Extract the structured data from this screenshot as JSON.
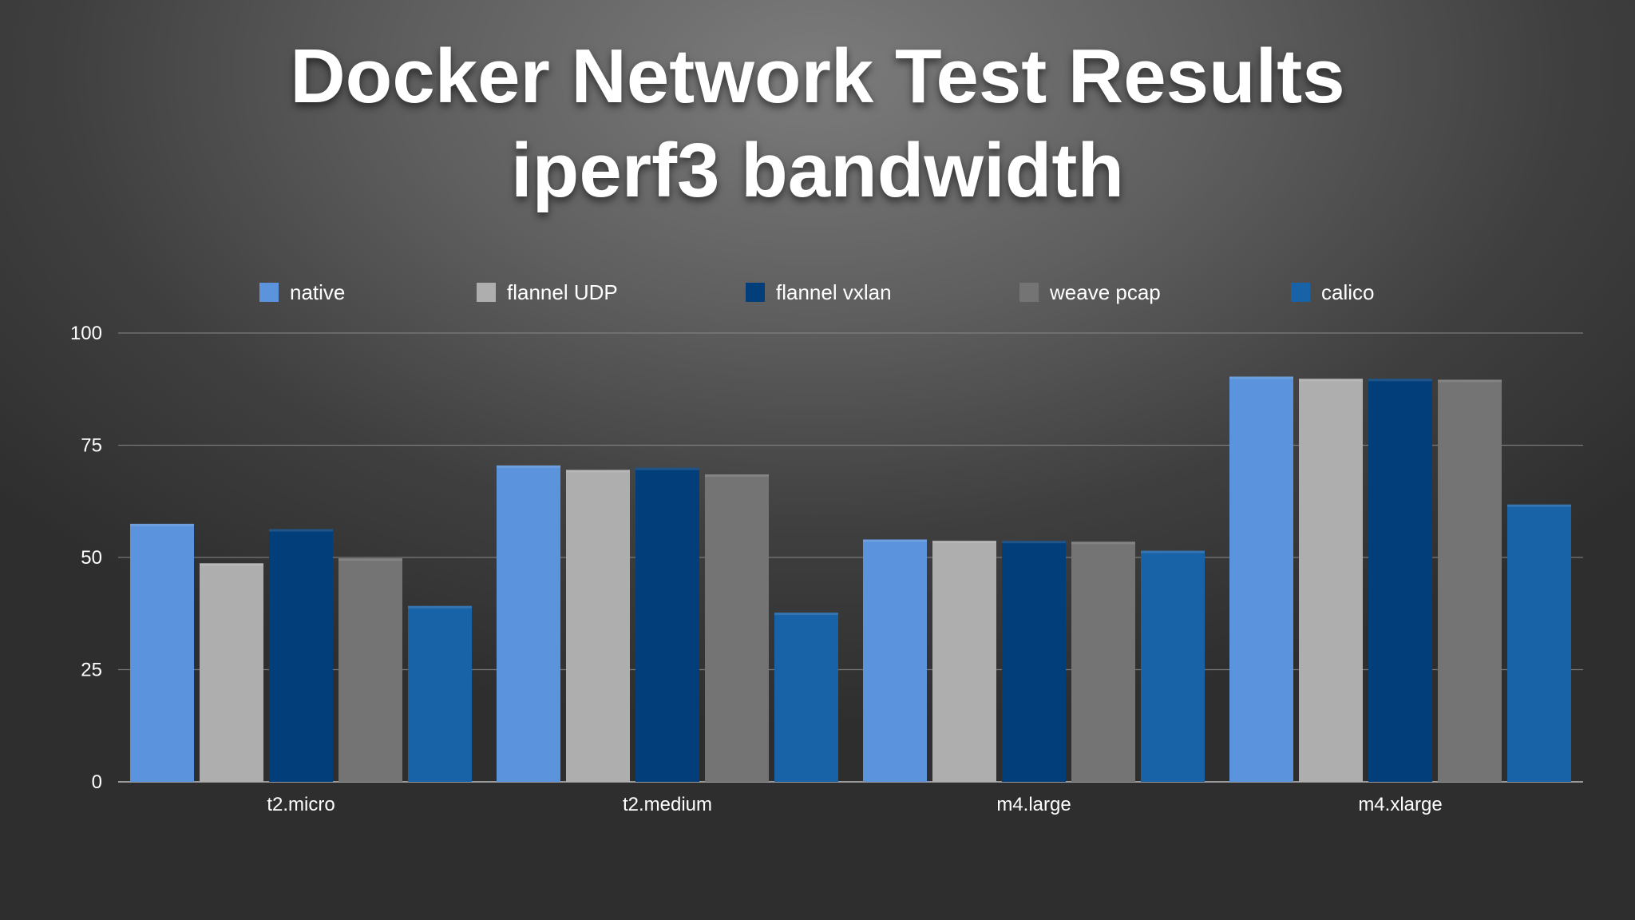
{
  "title_line1": "Docker Network Test Results",
  "title_line2": "iperf3 bandwidth",
  "chart_data": {
    "type": "bar",
    "categories": [
      "t2.micro",
      "t2.medium",
      "m4.large",
      "m4.xlarge"
    ],
    "series": [
      {
        "name": "native",
        "color": "#5b93dc",
        "values": [
          57.5,
          70.5,
          54,
          90.3
        ]
      },
      {
        "name": "flannel UDP",
        "color": "#aeaeae",
        "values": [
          48.7,
          69.5,
          53.7,
          89.8
        ]
      },
      {
        "name": "flannel vxlan",
        "color": "#023e7a",
        "values": [
          56.3,
          70,
          53.7,
          89.8
        ]
      },
      {
        "name": "weave pcap",
        "color": "#747474",
        "values": [
          49.8,
          68.5,
          53.5,
          89.6
        ]
      },
      {
        "name": "calico",
        "color": "#1862a8",
        "values": [
          39.2,
          37.7,
          51.5,
          61.8
        ]
      }
    ],
    "yticks": [
      0,
      25,
      50,
      75,
      100
    ],
    "ylim": [
      0,
      100
    ],
    "grid": true,
    "legend_position": "top"
  }
}
